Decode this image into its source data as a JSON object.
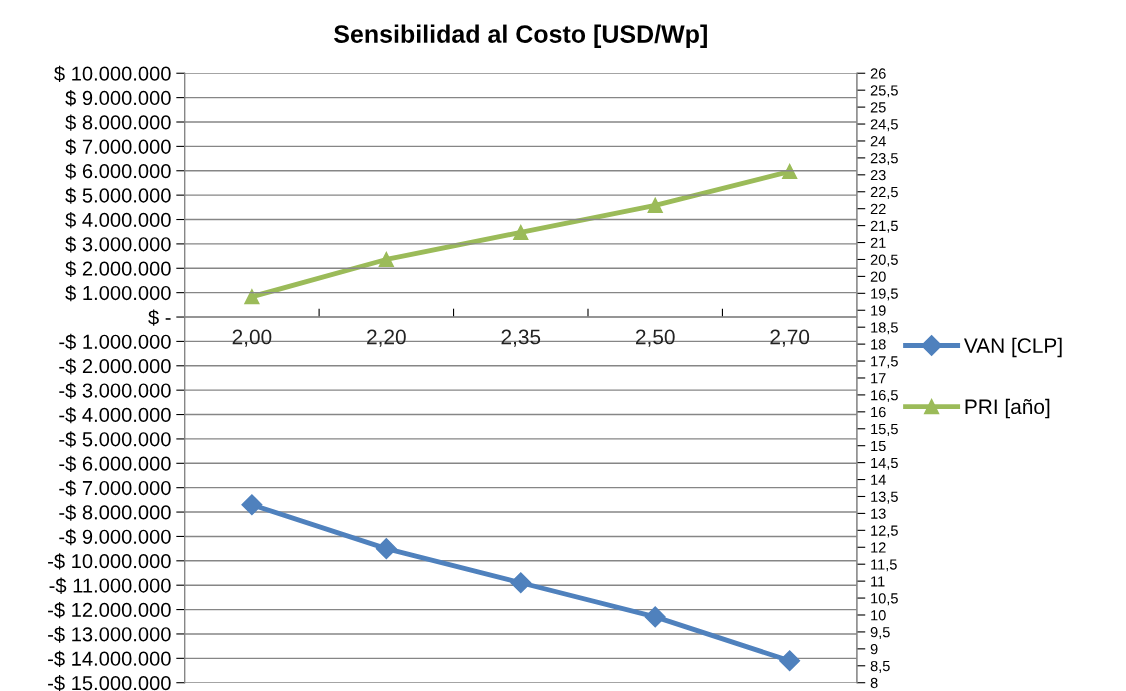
{
  "chart_data": {
    "type": "line",
    "title": "Sensibilidad al Costo [USD/Wp]",
    "categories": [
      "2,00",
      "2,20",
      "2,35",
      "2,50",
      "2,70"
    ],
    "series": [
      {
        "name": "VAN [CLP]",
        "color": "#4f81bd",
        "marker": "diamond",
        "values": [
          -7700000,
          -9500000,
          -10900000,
          -12300000,
          -14100000
        ]
      },
      {
        "name": "PRI [año]",
        "color": "#9bbb59",
        "marker": "triangle",
        "axis": "y2",
        "values": [
          19.4,
          20.5,
          21.3,
          22.1,
          23.1
        ]
      }
    ],
    "ylim": [
      -15000000,
      10000000
    ],
    "yticks": [
      {
        "value": 10000000,
        "label": "$ 10.000.000"
      },
      {
        "value": 9000000,
        "label": "$ 9.000.000"
      },
      {
        "value": 8000000,
        "label": "$ 8.000.000"
      },
      {
        "value": 7000000,
        "label": "$ 7.000.000"
      },
      {
        "value": 6000000,
        "label": "$ 6.000.000"
      },
      {
        "value": 5000000,
        "label": "$ 5.000.000"
      },
      {
        "value": 4000000,
        "label": "$ 4.000.000"
      },
      {
        "value": 3000000,
        "label": "$ 3.000.000"
      },
      {
        "value": 2000000,
        "label": "$ 2.000.000"
      },
      {
        "value": 1000000,
        "label": "$ 1.000.000"
      },
      {
        "value": 0,
        "label": "$ -"
      },
      {
        "value": -1000000,
        "label": "-$ 1.000.000"
      },
      {
        "value": -2000000,
        "label": "-$ 2.000.000"
      },
      {
        "value": -3000000,
        "label": "-$ 3.000.000"
      },
      {
        "value": -4000000,
        "label": "-$ 4.000.000"
      },
      {
        "value": -5000000,
        "label": "-$ 5.000.000"
      },
      {
        "value": -6000000,
        "label": "-$ 6.000.000"
      },
      {
        "value": -7000000,
        "label": "-$ 7.000.000"
      },
      {
        "value": -8000000,
        "label": "-$ 8.000.000"
      },
      {
        "value": -9000000,
        "label": "-$ 9.000.000"
      },
      {
        "value": -10000000,
        "label": "-$ 10.000.000"
      },
      {
        "value": -11000000,
        "label": "-$ 11.000.000"
      },
      {
        "value": -12000000,
        "label": "-$ 12.000.000"
      },
      {
        "value": -13000000,
        "label": "-$ 13.000.000"
      },
      {
        "value": -14000000,
        "label": "-$ 14.000.000"
      },
      {
        "value": -15000000,
        "label": "-$ 15.000.000"
      }
    ],
    "y2lim": [
      8,
      26
    ],
    "y2ticks": [
      8,
      {
        "value": 8.5,
        "label": "8,5"
      },
      9,
      {
        "value": 9.5,
        "label": "9,5"
      },
      10,
      {
        "value": 10.5,
        "label": "10,5"
      },
      11,
      {
        "value": 11.5,
        "label": "11,5"
      },
      12,
      {
        "value": 12.5,
        "label": "12,5"
      },
      13,
      {
        "value": 13.5,
        "label": "13,5"
      },
      14,
      {
        "value": 14.5,
        "label": "14,5"
      },
      15,
      {
        "value": 15.5,
        "label": "15,5"
      },
      16,
      {
        "value": 16.5,
        "label": "16,5"
      },
      17,
      {
        "value": 17.5,
        "label": "17,5"
      },
      18,
      {
        "value": 18.5,
        "label": "18,5"
      },
      19,
      {
        "value": 19.5,
        "label": "19,5"
      },
      20,
      {
        "value": 20.5,
        "label": "20,5"
      },
      21,
      {
        "value": 21.5,
        "label": "21,5"
      },
      22,
      {
        "value": 22.5,
        "label": "22,5"
      },
      23,
      {
        "value": 23.5,
        "label": "23,5"
      },
      24,
      {
        "value": 24.5,
        "label": "24,5"
      },
      25,
      {
        "value": 25.5,
        "label": "25,5"
      },
      26
    ],
    "grid": "y",
    "legend": "right",
    "line_style": "solid"
  }
}
